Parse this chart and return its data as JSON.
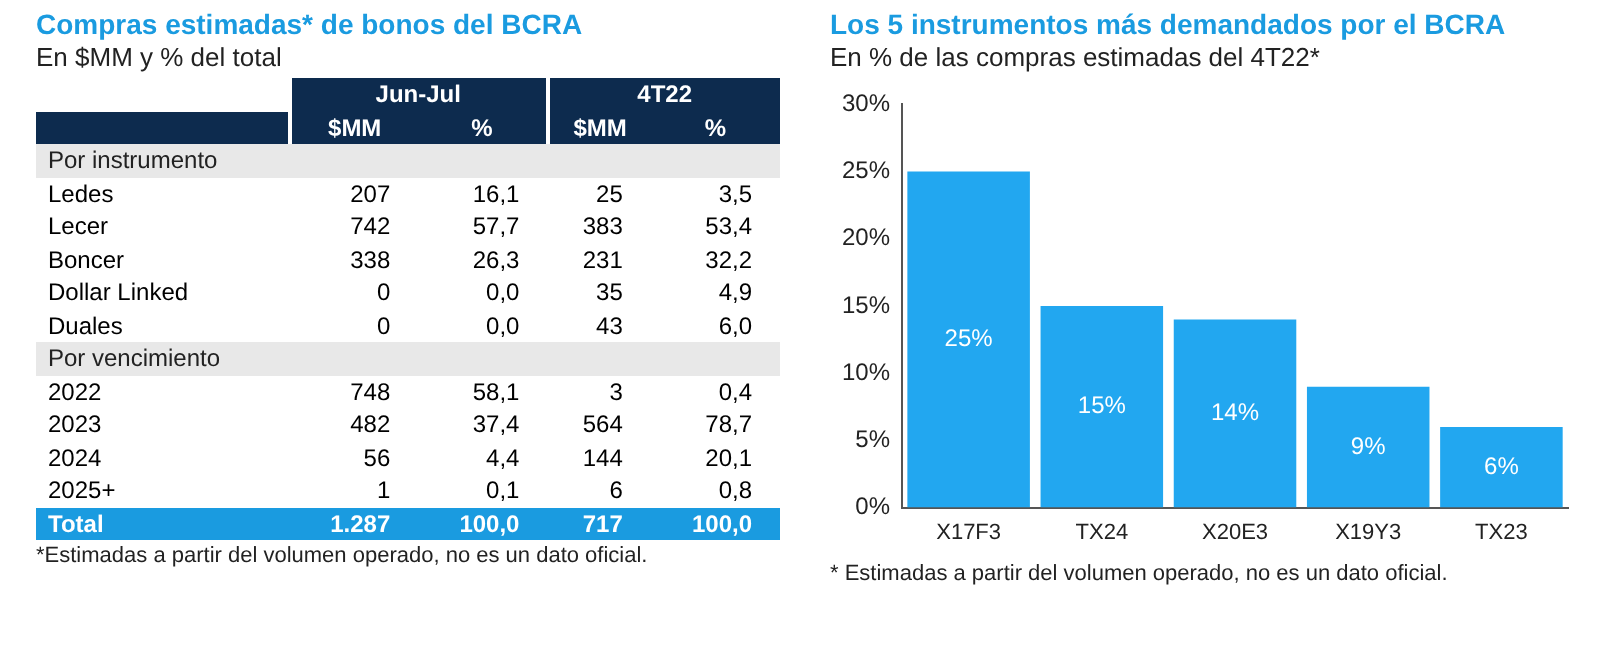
{
  "chart_data": [
    {
      "type": "heatmap",
      "title": "Compras estimadas* de bonos del BCRA",
      "subtitle": "En $MM y % del total",
      "categories": [
        "$MM",
        "%",
        "$MM",
        "%"
      ],
      "y_categories": [
        "Por instrumento",
        "Ledes",
        "Lecer",
        "Boncer",
        "Dollar Linked",
        "Duales",
        "Por vencimiento",
        "2022",
        "2023",
        "2024",
        "2025+",
        "Total"
      ],
      "cells": [
        [
          null,
          null,
          null,
          null
        ],
        [
          207,
          16.1,
          25,
          3.5
        ],
        [
          742,
          57.7,
          383,
          53.4
        ],
        [
          338,
          26.3,
          231,
          32.2
        ],
        [
          0,
          0.0,
          35,
          4.9
        ],
        [
          0,
          0.0,
          43,
          6.0
        ],
        [
          null,
          null,
          null,
          null
        ],
        [
          748,
          58.1,
          3,
          0.4
        ],
        [
          482,
          37.4,
          564,
          78.7
        ],
        [
          56,
          4.4,
          144,
          20.1
        ],
        [
          1,
          0.1,
          6,
          0.8
        ],
        [
          1287,
          100.0,
          717,
          100.0
        ]
      ],
      "cell_labels": [
        [
          null,
          null,
          null,
          null
        ],
        [
          "207",
          "16,1",
          "25",
          "3,5"
        ],
        [
          "742",
          "57,7",
          "383",
          "53,4"
        ],
        [
          "338",
          "26,3",
          "231",
          "32,2"
        ],
        [
          "0",
          "0,0",
          "35",
          "4,9"
        ],
        [
          "0",
          "0,0",
          "43",
          "6,0"
        ],
        [
          null,
          null,
          null,
          null
        ],
        [
          "748",
          "58,1",
          "3",
          "0,4"
        ],
        [
          "482",
          "37,4",
          "564",
          "78,7"
        ],
        [
          "56",
          "4,4",
          "144",
          "20,1"
        ],
        [
          "1",
          "0,1",
          "6",
          "0,8"
        ],
        [
          "1.287",
          "100,0",
          "717",
          "100,0"
        ]
      ],
      "annotations": [
        "Jun-Jul",
        "4T22",
        "*Estimadas a partir del volumen operado, no es un dato oficial."
      ]
    },
    {
      "type": "bar",
      "title": "Los 5 instrumentos más demandados por el BCRA",
      "subtitle": "En % de las compras estimadas del 4T22*",
      "categories": [
        "X17F3",
        "TX24",
        "X20E3",
        "X19Y3",
        "TX23"
      ],
      "values": [
        25,
        15,
        14,
        9,
        6
      ],
      "color": "#22a7f0",
      "value_labels": [
        "25%",
        "15%",
        "14%",
        "9%",
        "6%"
      ],
      "ylim": [
        0,
        30
      ],
      "yticks": [
        {
          "value": 0,
          "label": "0%"
        },
        {
          "value": 5,
          "label": "5%"
        },
        {
          "value": 10,
          "label": "10%"
        },
        {
          "value": 15,
          "label": "15%"
        },
        {
          "value": 20,
          "label": "20%"
        },
        {
          "value": 25,
          "label": "25%"
        },
        {
          "value": 30,
          "label": "30%"
        }
      ],
      "grid": false,
      "legend": false,
      "annotations": [
        "* Estimadas a partir del volumen operado, no es un dato oficial."
      ]
    }
  ]
}
